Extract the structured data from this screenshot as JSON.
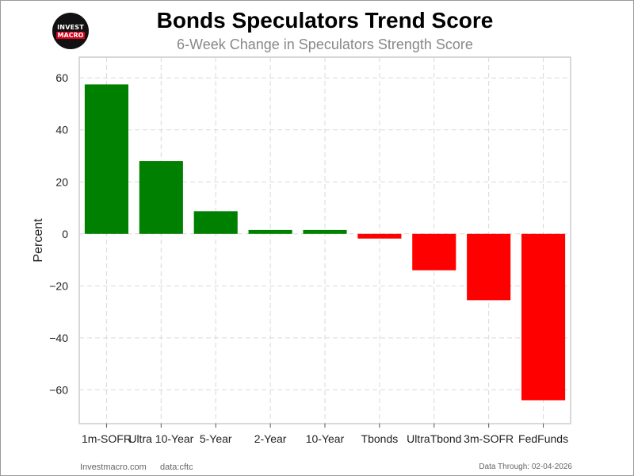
{
  "header": {
    "title": "Bonds Speculators Trend Score",
    "subtitle": "6-Week Change in Speculators Strength Score",
    "logo_line1": "INVEST",
    "logo_line2": "MACRO"
  },
  "footer": {
    "source": "Investmacro.com",
    "data_label": "data:cftc",
    "data_through": "Data Through: 02-04-2026"
  },
  "colors": {
    "positive": "#008000",
    "negative": "#ff0000",
    "grid": "#d9d9d9",
    "axis_border": "#cccccc"
  },
  "chart_data": {
    "type": "bar",
    "title": "Bonds Speculators Trend Score",
    "subtitle": "6-Week Change in Speculators Strength Score",
    "xlabel": "",
    "ylabel": "Percent",
    "categories": [
      "1m-SOFR",
      "Ultra 10-Year",
      "5-Year",
      "2-Year",
      "10-Year",
      "Tbonds",
      "UltraTbond",
      "3m-SOFR",
      "FedFunds"
    ],
    "values": [
      57.5,
      28,
      8.7,
      1.5,
      1.5,
      -1.8,
      -14,
      -25.5,
      -64
    ],
    "ylim": [
      -73,
      68
    ],
    "yticks": [
      -60,
      -40,
      -20,
      0,
      20,
      40,
      60
    ],
    "ytick_labels": [
      "−60",
      "−40",
      "−20",
      "0",
      "20",
      "40",
      "60"
    ],
    "grid": true,
    "legend": false
  }
}
